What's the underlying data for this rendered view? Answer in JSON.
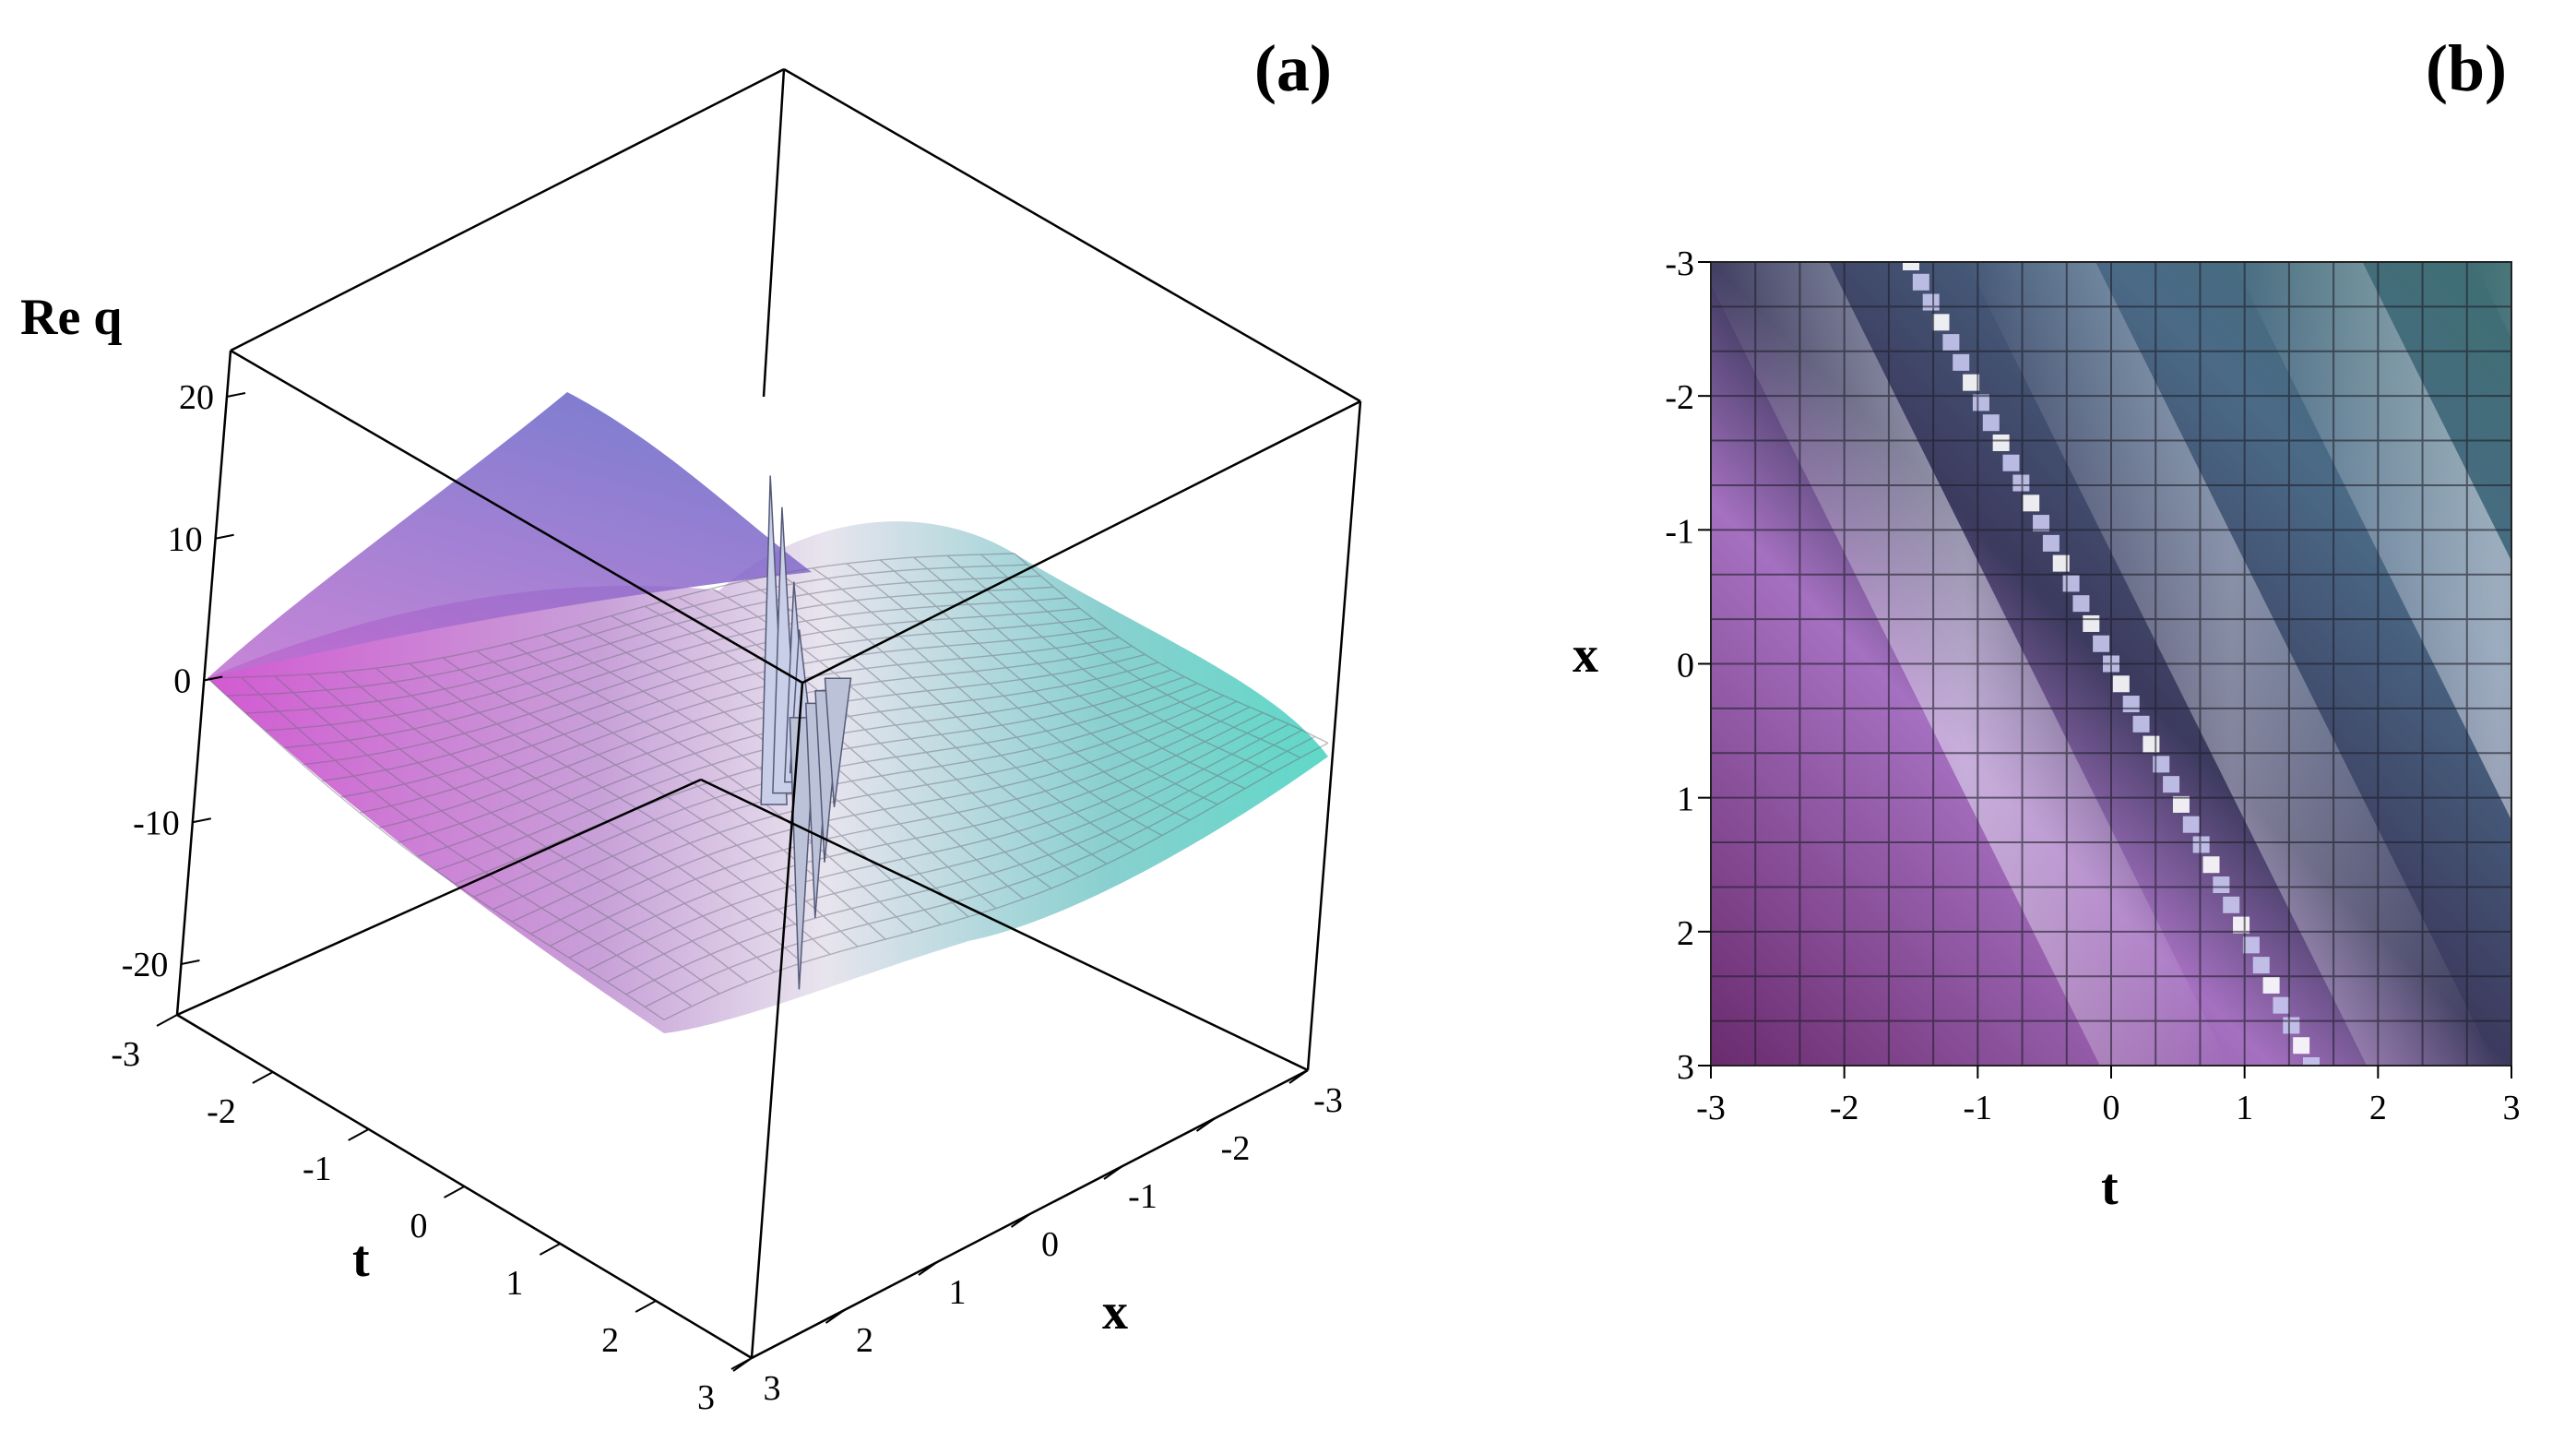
{
  "panel_labels": {
    "a": "(a)",
    "b": "(b)"
  },
  "chart_data": [
    {
      "type": "surface3d",
      "panel": "(a)",
      "zlabel": "Re q",
      "xlabel": "x",
      "ylabel": "t",
      "x_range": [
        -3,
        3
      ],
      "t_range": [
        -3,
        3
      ],
      "z_range": [
        -20,
        20
      ],
      "z_ticks": [
        20,
        10,
        0,
        -10,
        -20
      ],
      "t_ticks": [
        -3,
        -2,
        -1,
        0,
        1,
        2,
        3
      ],
      "x_ticks": [
        -3,
        -2,
        -1,
        0,
        1,
        2,
        3
      ],
      "t_tick_labels": [
        "-3",
        "-2",
        "-1",
        "0",
        "1",
        "2",
        "3"
      ],
      "x_tick_labels": [
        "-3",
        "-2",
        "-1",
        "0",
        "1",
        "2",
        "3"
      ],
      "z_tick_labels": [
        "20",
        "10",
        "0",
        "-10",
        "-20"
      ],
      "spikes": [
        {
          "t": 1.4,
          "x": -1.0,
          "z": 23
        },
        {
          "t": 1.2,
          "x": -0.7,
          "z": 20
        },
        {
          "t": 1.0,
          "x": -0.4,
          "z": 14
        },
        {
          "t": 0.8,
          "x": -0.2,
          "z": 10
        },
        {
          "t": -0.6,
          "x": 0.6,
          "z": -19
        },
        {
          "t": -0.9,
          "x": 1.0,
          "z": -15
        },
        {
          "t": -1.2,
          "x": 1.3,
          "z": -12
        },
        {
          "t": -1.5,
          "x": 1.6,
          "z": -9
        }
      ],
      "colormap": [
        "#c84fc8",
        "#d6c8e6",
        "#5a4fb5",
        "#5fd6c8"
      ]
    },
    {
      "type": "heatmap",
      "panel": "(b)",
      "xlabel": "t",
      "ylabel": "x",
      "x_range": [
        -3,
        3
      ],
      "y_range": [
        -3,
        3
      ],
      "x_ticks": [
        -3,
        -2,
        -1,
        0,
        1,
        2,
        3
      ],
      "y_ticks": [
        -3,
        -2,
        -1,
        0,
        1,
        2,
        3
      ],
      "x_tick_labels": [
        "-3",
        "-2",
        "-1",
        "0",
        "1",
        "2",
        "3"
      ],
      "y_tick_labels": [
        "-3",
        "-2",
        "-1",
        "0",
        "1",
        "2",
        "3"
      ],
      "grid": true,
      "ridge": [
        {
          "t": -1.5,
          "x": -3
        },
        {
          "t": 1.5,
          "x": 3
        }
      ],
      "colormap": [
        "#6a2b6e",
        "#b47bc8",
        "#e6e6f0",
        "#3b3357",
        "#5a9a96"
      ]
    }
  ]
}
